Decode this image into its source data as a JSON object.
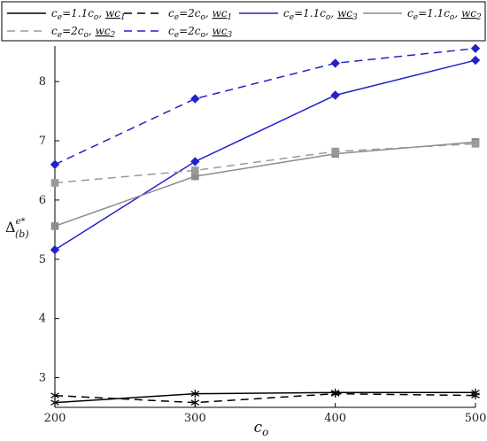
{
  "chart_data": {
    "type": "line",
    "x": [
      200,
      300,
      400,
      500
    ],
    "xlim": [
      200,
      500
    ],
    "ylim": [
      2.5,
      8.6
    ],
    "xticks": [
      "200",
      "300",
      "400",
      "500"
    ],
    "yticks": [
      "3",
      "4",
      "5",
      "6",
      "7",
      "8"
    ],
    "xlabel": "c",
    "xlabel_sub": "o",
    "ylabel": "Δ",
    "ylabel_sup": "e*",
    "ylabel_sub": "(b)",
    "legend_position": "top",
    "grid": false,
    "series": [
      {
        "legend": [
          "c",
          "e",
          "=1.1c",
          "o",
          ", ",
          "wc",
          "1"
        ],
        "color": "#000000",
        "dash": "solid",
        "marker": "star",
        "values": [
          2.58,
          2.73,
          2.75,
          2.75
        ]
      },
      {
        "legend": [
          "c",
          "e",
          "=2c",
          "o",
          ", ",
          "wc",
          "1"
        ],
        "color": "#000000",
        "dash": "dashed",
        "marker": "star",
        "values": [
          2.7,
          2.58,
          2.73,
          2.7
        ]
      },
      {
        "legend": [
          "c",
          "e",
          "=1.1c",
          "o",
          ", ",
          "wc",
          "3"
        ],
        "color": "#2222cc",
        "dash": "solid",
        "marker": "diamond",
        "values": [
          5.16,
          6.65,
          7.77,
          8.36
        ]
      },
      {
        "legend": [
          "c",
          "e",
          "=1.1c",
          "o",
          ", ",
          "wc",
          "2"
        ],
        "color": "#8c8c8c",
        "dash": "solid",
        "marker": "square",
        "values": [
          5.56,
          6.4,
          6.78,
          6.98
        ]
      },
      {
        "legend": [
          "c",
          "e",
          "=2c",
          "o",
          ", ",
          "wc",
          "2"
        ],
        "color": "#9a9a9a",
        "dash": "dashed",
        "marker": "square",
        "values": [
          6.29,
          6.5,
          6.82,
          6.95
        ]
      },
      {
        "legend": [
          "c",
          "e",
          "=2c",
          "o",
          ", ",
          "wc",
          "3"
        ],
        "color": "#2222cc",
        "dash": "dashed",
        "marker": "diamond",
        "values": [
          6.6,
          7.71,
          8.31,
          8.56
        ]
      }
    ]
  }
}
